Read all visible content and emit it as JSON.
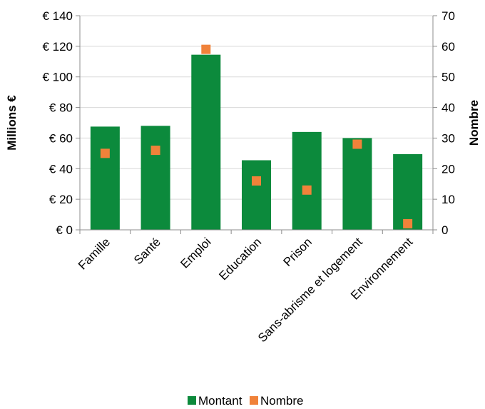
{
  "chart_data": {
    "type": "bar",
    "categories": [
      "Famille",
      "Santé",
      "Emploi",
      "Education",
      "Prison",
      "Sans-abrisme et logement",
      "Environnement"
    ],
    "series": [
      {
        "name": "Montant",
        "type": "bar",
        "axis": "left",
        "color": "#0c8a3c",
        "values": [
          67.5,
          68,
          114.5,
          45.5,
          64,
          60,
          49.5
        ]
      },
      {
        "name": "Nombre",
        "type": "scatter",
        "axis": "right",
        "color": "#f0823a",
        "values": [
          25,
          26,
          59,
          16,
          13,
          28,
          2
        ]
      }
    ],
    "ylabel": "Millions €",
    "y2label": "Nombre",
    "ylim": [
      0,
      140
    ],
    "y2lim": [
      0,
      70
    ],
    "yticks": [
      "€ 0",
      "€ 20",
      "€ 40",
      "€ 60",
      "€ 80",
      "€ 100",
      "€ 120",
      "€ 140"
    ],
    "y2ticks": [
      "0",
      "10",
      "20",
      "30",
      "40",
      "50",
      "60",
      "70"
    ],
    "legend_position": "bottom",
    "grid": true
  }
}
